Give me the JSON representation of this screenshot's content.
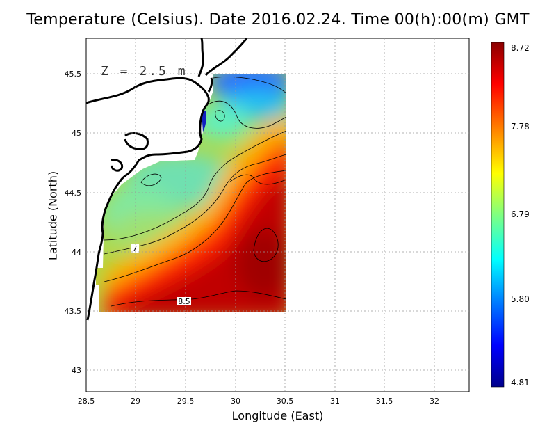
{
  "title": "Temperature (Celsius). Date 2016.02.24. Time 00(h):00(m)  GMT",
  "depth_label": "Z = 2.5 m",
  "contour_labels": [
    "7",
    "8.5"
  ],
  "chart_data": {
    "type": "heatmap",
    "variable": "Temperature (Celsius)",
    "date": "2016.02.24",
    "time": "00(h):00(m) GMT",
    "depth": "2.5 m",
    "xlabel": "Longitude (East)",
    "ylabel": "Latitude (North)",
    "xlim": [
      28.5,
      32.35
    ],
    "ylim": [
      42.8,
      45.8
    ],
    "xticks": [
      "28.5",
      "29",
      "29.5",
      "30",
      "30.5",
      "31",
      "31.5",
      "32"
    ],
    "yticks": [
      "43",
      "43.5",
      "44",
      "44.5",
      "45",
      "45.5"
    ],
    "grid": true,
    "colorbar": {
      "min": 4.81,
      "max": 8.72,
      "labels": [
        "8.72",
        "7.78",
        "6.79",
        "5.80",
        "4.81"
      ],
      "colors": [
        "#00008b",
        "#0000ff",
        "#0080ff",
        "#00ffff",
        "#80ff80",
        "#ffff00",
        "#ff8000",
        "#ff0000",
        "#8b0000"
      ]
    },
    "data_extent": {
      "lon": [
        28.63,
        30.55
      ],
      "lat": [
        43.48,
        45.48
      ]
    }
  }
}
